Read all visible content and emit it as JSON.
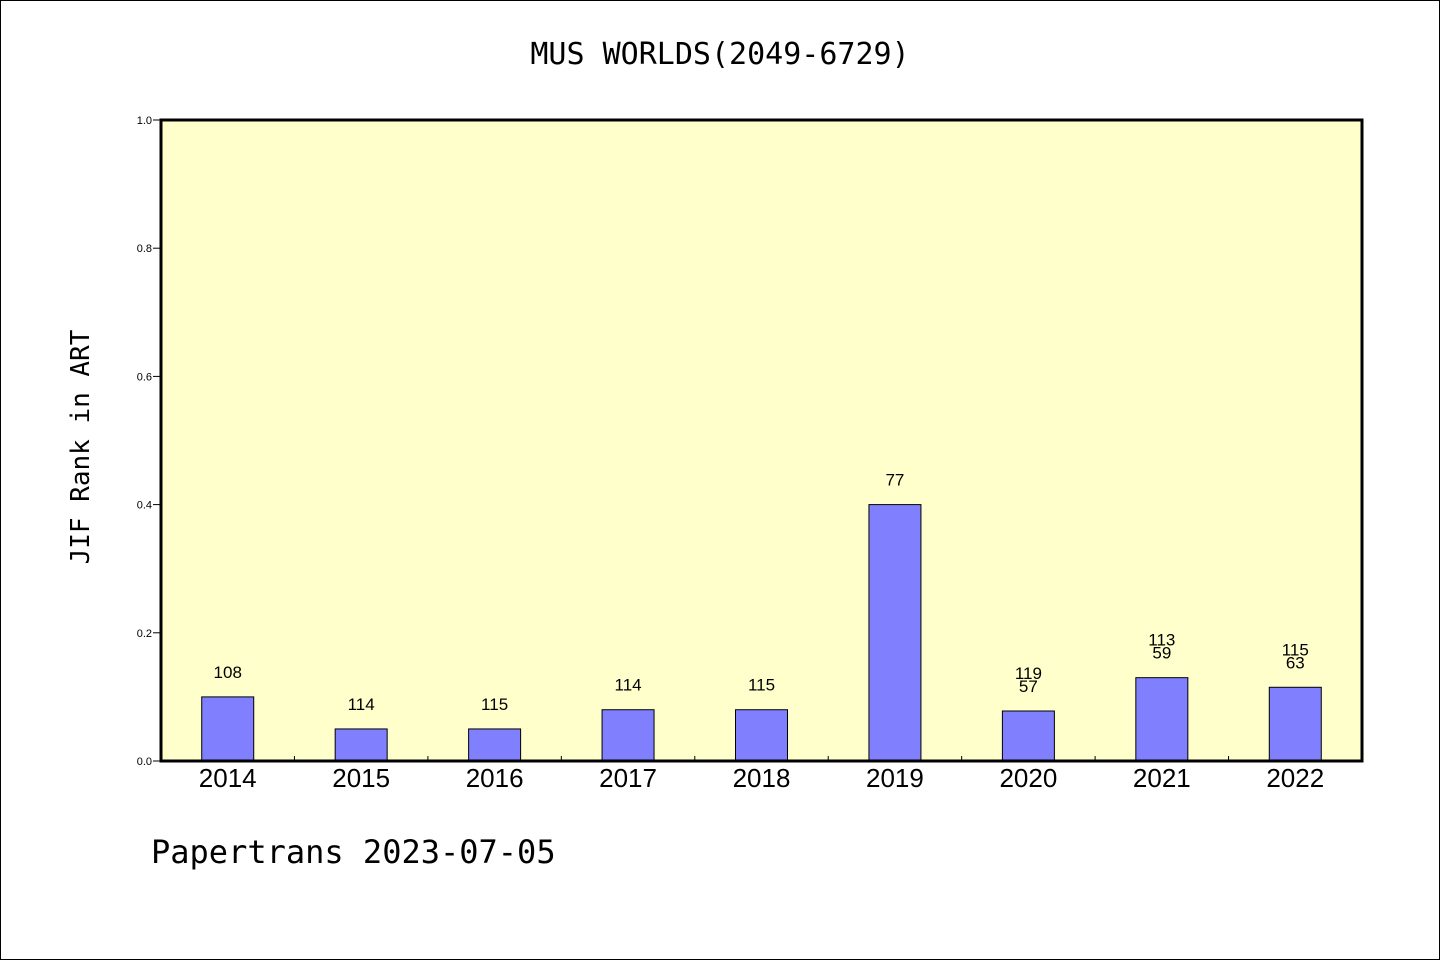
{
  "header": {
    "title": "MUS WORLDS(2049-6729)"
  },
  "footer": {
    "text": "Papertrans 2023-07-05"
  },
  "chart_data": {
    "type": "bar",
    "title": "MUS WORLDS(2049-6729)",
    "ylabel": "JIF Rank in ART",
    "xlabel": "",
    "ylim": [
      0,
      1.0
    ],
    "yticks": [
      "0.0",
      "0.2",
      "0.4",
      "0.6",
      "0.8",
      "1.0"
    ],
    "categories": [
      "2014",
      "2015",
      "2016",
      "2017",
      "2018",
      "2019",
      "2020",
      "2021",
      "2022"
    ],
    "values": [
      0.1,
      0.05,
      0.05,
      0.08,
      0.08,
      0.4,
      0.078,
      0.13,
      0.115
    ],
    "labels": [
      [
        "108"
      ],
      [
        "114"
      ],
      [
        "115"
      ],
      [
        "114"
      ],
      [
        "115"
      ],
      [
        "77"
      ],
      [
        "119",
        "57"
      ],
      [
        "113",
        "59"
      ],
      [
        "115",
        "63"
      ]
    ],
    "grid": false,
    "colors": {
      "bar": "#8080ff",
      "plot_background": "#ffffcc",
      "bar_edge": "#000000"
    }
  }
}
